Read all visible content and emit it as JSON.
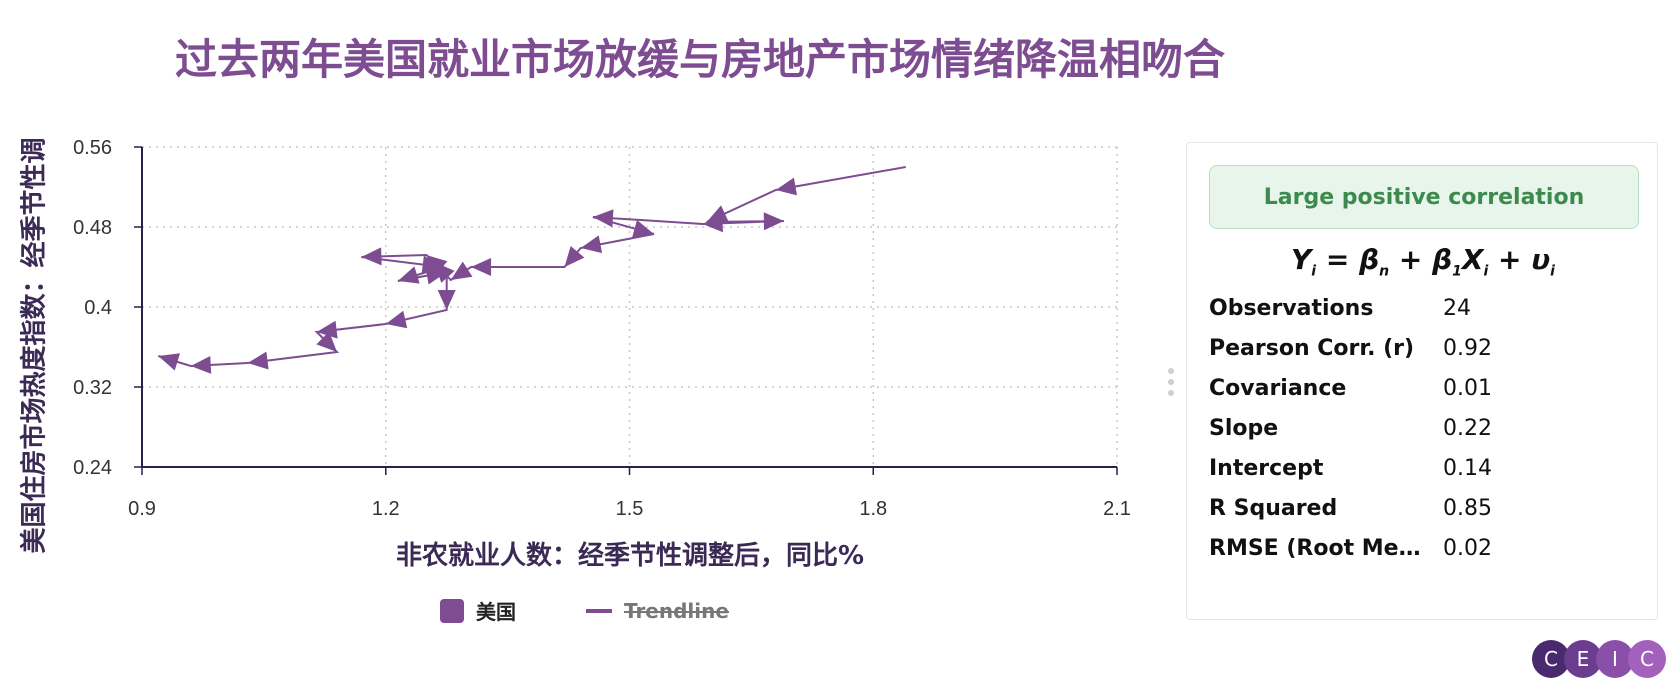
{
  "title": "过去两年美国就业市场放缓与房地产市场情绪降温相吻合",
  "chart_data": {
    "type": "scatter",
    "xlabel": "非农就业人数：经季节性调整后，同比%",
    "ylabel": "美国住房市场热度指数：经季节性调",
    "xlim": [
      0.9,
      2.1
    ],
    "ylim": [
      0.24,
      0.56
    ],
    "x_ticks": [
      "0.9",
      "1.2",
      "1.5",
      "1.8",
      "2.1"
    ],
    "y_ticks": [
      "0.56",
      "0.48",
      "0.4",
      "0.32",
      "0.24"
    ],
    "grid": true,
    "connected": true,
    "series": [
      {
        "name": "美国",
        "color": "#7d4c91",
        "points": [
          {
            "x": 1.84,
            "y": 0.54
          },
          {
            "x": 1.68,
            "y": 0.517
          },
          {
            "x": 1.595,
            "y": 0.485
          },
          {
            "x": 1.69,
            "y": 0.486
          },
          {
            "x": 1.59,
            "y": 0.483
          },
          {
            "x": 1.455,
            "y": 0.49
          },
          {
            "x": 1.53,
            "y": 0.473
          },
          {
            "x": 1.44,
            "y": 0.459
          },
          {
            "x": 1.42,
            "y": 0.44
          },
          {
            "x": 1.305,
            "y": 0.44
          },
          {
            "x": 1.28,
            "y": 0.427
          },
          {
            "x": 1.26,
            "y": 0.445
          },
          {
            "x": 1.25,
            "y": 0.452
          },
          {
            "x": 1.17,
            "y": 0.45
          },
          {
            "x": 1.27,
            "y": 0.44
          },
          {
            "x": 1.215,
            "y": 0.426
          },
          {
            "x": 1.275,
            "y": 0.435
          },
          {
            "x": 1.275,
            "y": 0.397
          },
          {
            "x": 1.2,
            "y": 0.383
          },
          {
            "x": 1.115,
            "y": 0.375
          },
          {
            "x": 1.14,
            "y": 0.355
          },
          {
            "x": 1.03,
            "y": 0.344
          },
          {
            "x": 0.96,
            "y": 0.341
          },
          {
            "x": 0.92,
            "y": 0.351
          }
        ]
      }
    ],
    "legend": [
      "美国",
      "Trendline"
    ],
    "legend_position": "bottom"
  },
  "stats_panel": {
    "badge": "Large positive correlation",
    "formula": {
      "y": "Y",
      "sub_i": "i",
      "beta": "β",
      "sub_n": "n",
      "sub_1": "1",
      "x": "X",
      "u": "υ"
    },
    "rows": [
      {
        "name": "Observations",
        "value": "24"
      },
      {
        "name": "Pearson Corr. (r)",
        "value": "0.92"
      },
      {
        "name": "Covariance",
        "value": "0.01"
      },
      {
        "name": "Slope",
        "value": "0.22"
      },
      {
        "name": "Intercept",
        "value": "0.14"
      },
      {
        "name": "R Squared",
        "value": "0.85"
      },
      {
        "name": "RMSE (Root Me…",
        "value": "0.02"
      }
    ]
  },
  "logo": {
    "letters": [
      "C",
      "E",
      "I",
      "C"
    ],
    "colors": [
      "#4a2a6e",
      "#6b3d8e",
      "#8a4fa8",
      "#a361bd"
    ]
  }
}
